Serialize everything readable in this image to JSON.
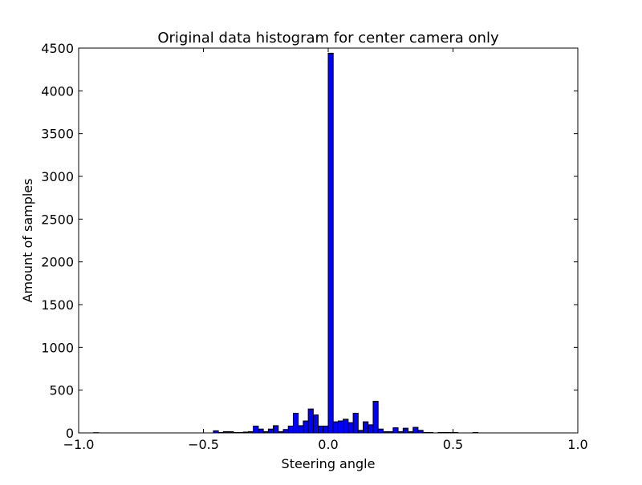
{
  "chart_data": {
    "type": "bar",
    "title": "Original data histogram for center camera only",
    "xlabel": "Steering angle",
    "ylabel": "Amount of samples",
    "xlim": [
      -1.0,
      1.0
    ],
    "ylim": [
      0,
      4500
    ],
    "grid": false,
    "legend": "none",
    "bar_color": "#0000ff",
    "bar_edge_color": "#000000",
    "xtick_labels": [
      "−1.0",
      "−0.5",
      "0.0",
      "0.5",
      "1.0"
    ],
    "xtick_values": [
      -1.0,
      -0.5,
      0.0,
      0.5,
      1.0
    ],
    "ytick_labels": [
      "0",
      "500",
      "1000",
      "1500",
      "2000",
      "2500",
      "3000",
      "3500",
      "4000",
      "4500"
    ],
    "ytick_values": [
      0,
      500,
      1000,
      1500,
      2000,
      2500,
      3000,
      3500,
      4000,
      4500
    ],
    "bins": [
      {
        "x0": -0.94,
        "x1": -0.92,
        "value": 3
      },
      {
        "x0": -0.46,
        "x1": -0.44,
        "value": 25
      },
      {
        "x0": -0.44,
        "x1": -0.42,
        "value": 5
      },
      {
        "x0": -0.42,
        "x1": -0.4,
        "value": 15
      },
      {
        "x0": -0.4,
        "x1": -0.38,
        "value": 15
      },
      {
        "x0": -0.38,
        "x1": -0.36,
        "value": 5
      },
      {
        "x0": -0.36,
        "x1": -0.34,
        "value": 5
      },
      {
        "x0": -0.34,
        "x1": -0.32,
        "value": 10
      },
      {
        "x0": -0.32,
        "x1": -0.3,
        "value": 15
      },
      {
        "x0": -0.3,
        "x1": -0.28,
        "value": 80
      },
      {
        "x0": -0.28,
        "x1": -0.26,
        "value": 45
      },
      {
        "x0": -0.26,
        "x1": -0.24,
        "value": 15
      },
      {
        "x0": -0.24,
        "x1": -0.22,
        "value": 45
      },
      {
        "x0": -0.22,
        "x1": -0.2,
        "value": 85
      },
      {
        "x0": -0.2,
        "x1": -0.18,
        "value": 15
      },
      {
        "x0": -0.18,
        "x1": -0.16,
        "value": 40
      },
      {
        "x0": -0.16,
        "x1": -0.14,
        "value": 80
      },
      {
        "x0": -0.14,
        "x1": -0.12,
        "value": 230
      },
      {
        "x0": -0.12,
        "x1": -0.1,
        "value": 85
      },
      {
        "x0": -0.1,
        "x1": -0.08,
        "value": 140
      },
      {
        "x0": -0.08,
        "x1": -0.06,
        "value": 280
      },
      {
        "x0": -0.06,
        "x1": -0.04,
        "value": 210
      },
      {
        "x0": -0.04,
        "x1": -0.02,
        "value": 80
      },
      {
        "x0": -0.02,
        "x1": 0.0,
        "value": 80
      },
      {
        "x0": 0.0,
        "x1": 0.02,
        "value": 4440
      },
      {
        "x0": 0.02,
        "x1": 0.04,
        "value": 130
      },
      {
        "x0": 0.04,
        "x1": 0.06,
        "value": 140
      },
      {
        "x0": 0.06,
        "x1": 0.08,
        "value": 160
      },
      {
        "x0": 0.08,
        "x1": 0.1,
        "value": 120
      },
      {
        "x0": 0.1,
        "x1": 0.12,
        "value": 230
      },
      {
        "x0": 0.12,
        "x1": 0.14,
        "value": 30
      },
      {
        "x0": 0.14,
        "x1": 0.16,
        "value": 130
      },
      {
        "x0": 0.16,
        "x1": 0.18,
        "value": 95
      },
      {
        "x0": 0.18,
        "x1": 0.2,
        "value": 370
      },
      {
        "x0": 0.2,
        "x1": 0.22,
        "value": 45
      },
      {
        "x0": 0.22,
        "x1": 0.24,
        "value": 15
      },
      {
        "x0": 0.24,
        "x1": 0.26,
        "value": 15
      },
      {
        "x0": 0.26,
        "x1": 0.28,
        "value": 60
      },
      {
        "x0": 0.28,
        "x1": 0.3,
        "value": 15
      },
      {
        "x0": 0.3,
        "x1": 0.32,
        "value": 55
      },
      {
        "x0": 0.32,
        "x1": 0.34,
        "value": 15
      },
      {
        "x0": 0.34,
        "x1": 0.36,
        "value": 65
      },
      {
        "x0": 0.36,
        "x1": 0.38,
        "value": 30
      },
      {
        "x0": 0.38,
        "x1": 0.4,
        "value": 5
      },
      {
        "x0": 0.4,
        "x1": 0.42,
        "value": 5
      },
      {
        "x0": 0.44,
        "x1": 0.46,
        "value": 5
      },
      {
        "x0": 0.46,
        "x1": 0.48,
        "value": 5
      },
      {
        "x0": 0.48,
        "x1": 0.5,
        "value": 5
      },
      {
        "x0": 0.5,
        "x1": 0.52,
        "value": 5
      },
      {
        "x0": 0.58,
        "x1": 0.6,
        "value": 5
      }
    ]
  }
}
